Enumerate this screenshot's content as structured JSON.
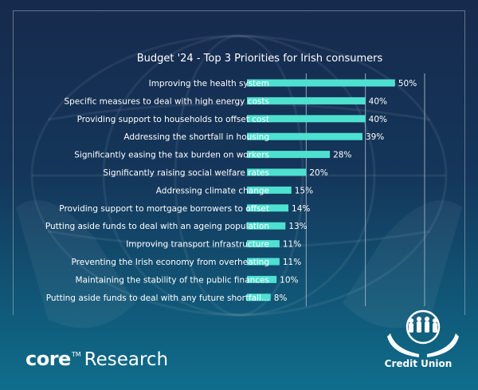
{
  "chart_data": {
    "type": "bar",
    "orientation": "horizontal",
    "title": "Budget '24 - Top 3 Priorities for Irish consumers",
    "categories": [
      "Improving the health system",
      "Specific measures to deal with high energy costs",
      "Providing support to households to offset cost",
      "Addressing the shortfall in housing",
      "Significantly easing the tax burden on workers",
      "Significantly raising social welfare rates",
      "Addressing climate change",
      "Providing support to mortgage borrowers to offset",
      "Putting aside funds to deal with an ageing population",
      "Improving transport infrastructure",
      "Preventing the Irish economy from overheating",
      "Maintaining the stability of the public finances",
      "Putting aside funds to deal with any future shortfall..."
    ],
    "values": [
      50,
      40,
      40,
      39,
      28,
      20,
      15,
      14,
      13,
      11,
      11,
      10,
      8
    ],
    "value_labels": [
      "50%",
      "40%",
      "40%",
      "39%",
      "28%",
      "20%",
      "15%",
      "14%",
      "13%",
      "11%",
      "11%",
      "10%",
      "8%"
    ],
    "xlim": [
      0,
      60
    ],
    "gridlines": [
      20,
      40,
      60
    ],
    "bar_color": "#4ee0d0",
    "grid_color": "#9aa8bd",
    "xlabel": "",
    "ylabel": ""
  },
  "brand": {
    "core": "core",
    "trademark": "TM",
    "research": "Research"
  },
  "logo": {
    "label": "Credit Union"
  }
}
